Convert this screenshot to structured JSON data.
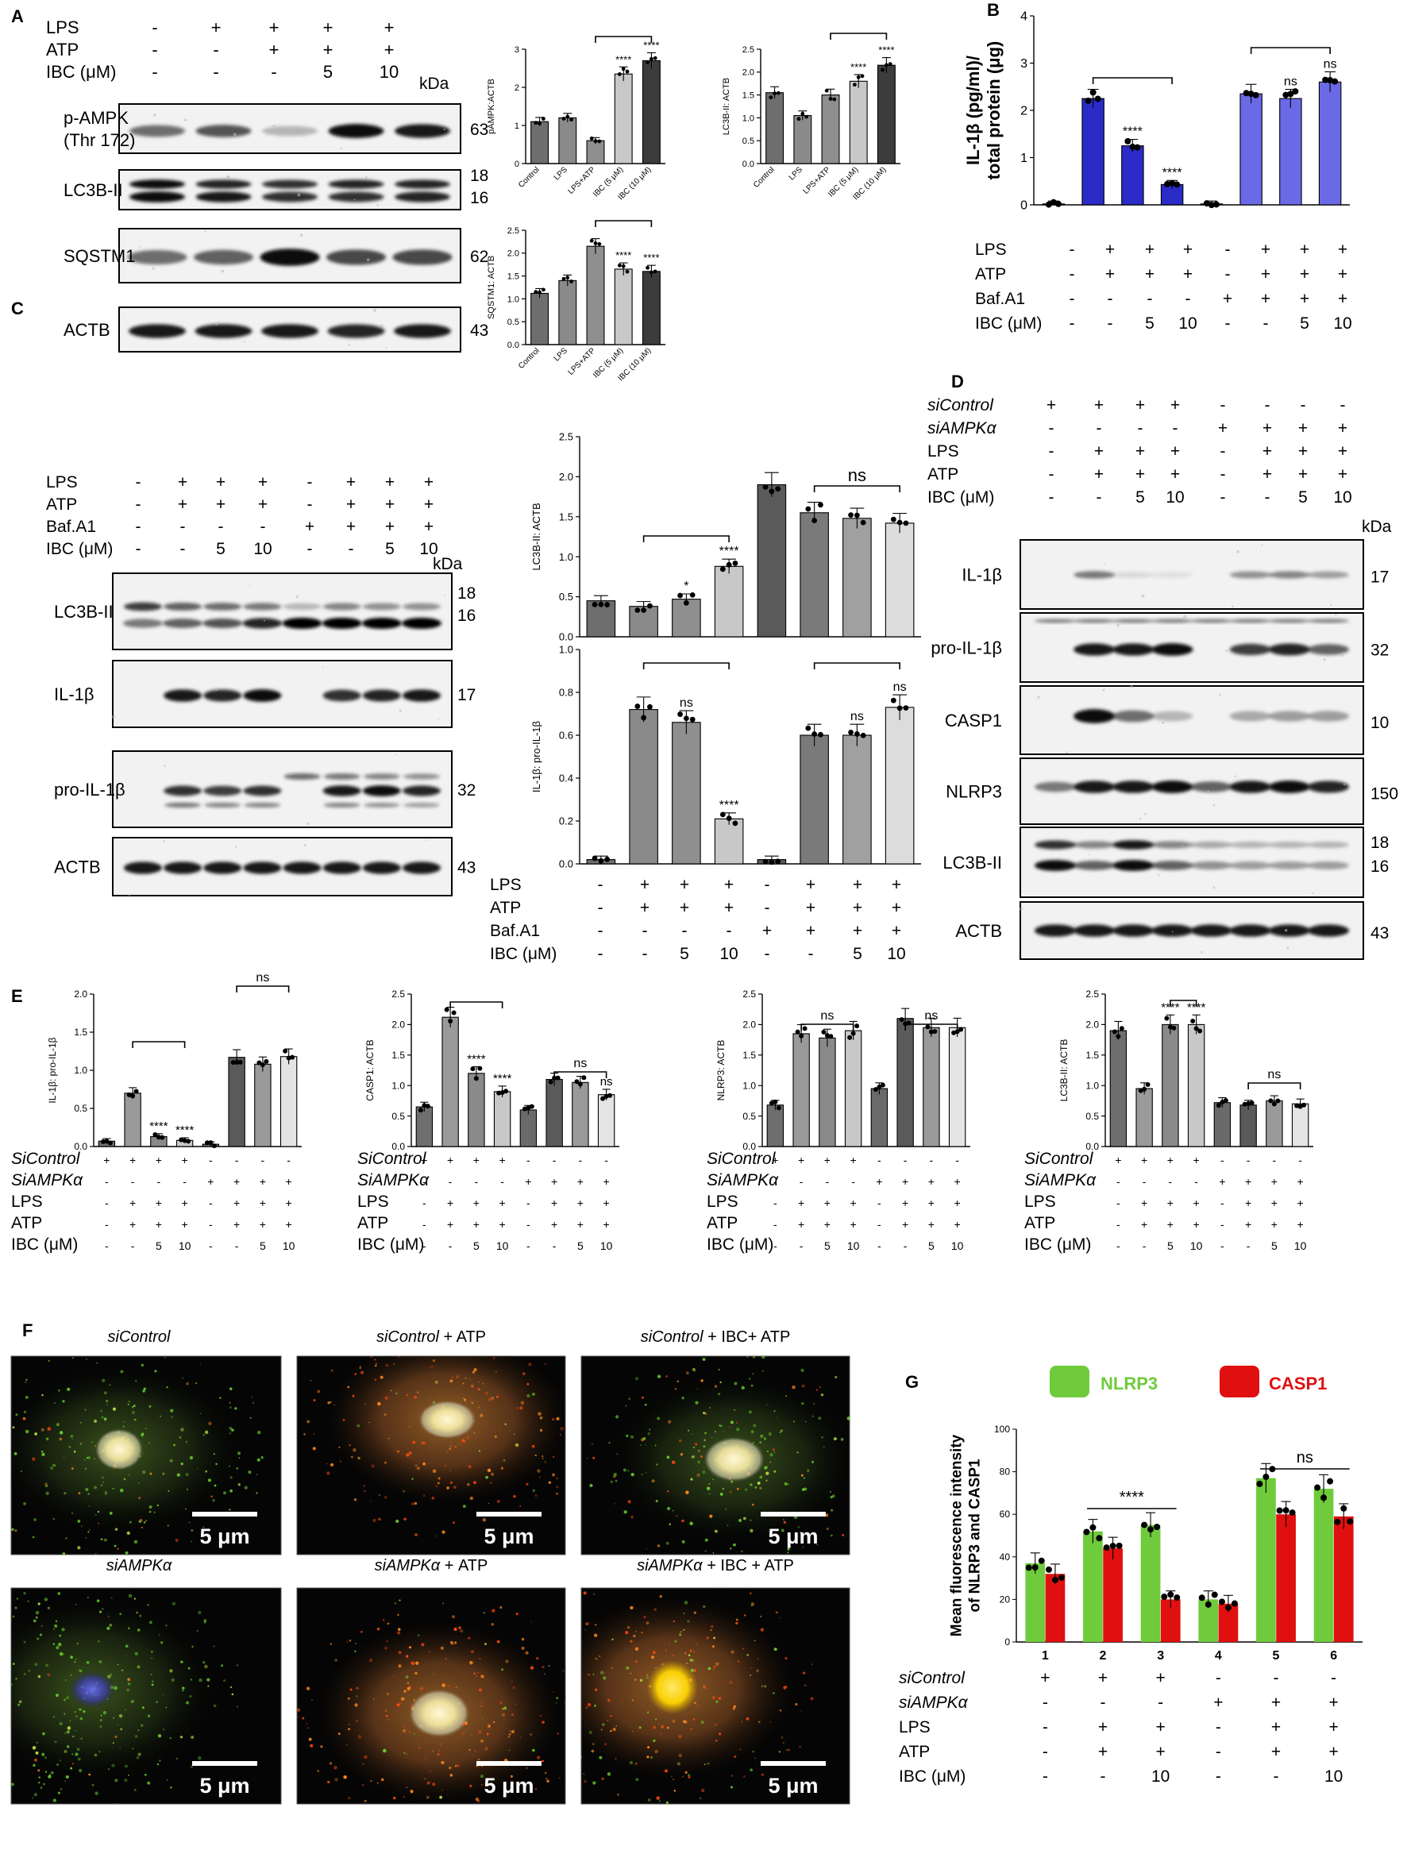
{
  "figure": {
    "panel_letters": [
      "A",
      "B",
      "C",
      "D",
      "E",
      "F",
      "G"
    ],
    "kda": "kDa",
    "ns": "ns",
    "sig4": "****",
    "sig1": "*"
  },
  "panelA": {
    "treat_rows": [
      {
        "label": "LPS",
        "signs": [
          "-",
          "+",
          "+",
          "+",
          "+"
        ]
      },
      {
        "label": "ATP",
        "signs": [
          "-",
          "-",
          "+",
          "+",
          "+"
        ]
      },
      {
        "label": "IBC (μM)",
        "signs": [
          "-",
          "-",
          "-",
          "5",
          "10"
        ]
      }
    ],
    "blots": [
      {
        "label": [
          "p-AMPK",
          "(Thr 172)"
        ],
        "kda": [
          "63"
        ]
      },
      {
        "label": [
          "LC3B-II"
        ],
        "kda": [
          "18",
          "16"
        ]
      },
      {
        "label": [
          "SQSTM1"
        ],
        "kda": [
          "62"
        ]
      },
      {
        "label": [
          "ACTB"
        ],
        "kda": [
          "43"
        ]
      }
    ],
    "categories": [
      "Control",
      "LPS",
      "LPS+ATP",
      "IBC (5 μM)",
      "IBC (10 μM)"
    ]
  },
  "panelB": {
    "treat_rows": [
      {
        "label": "LPS",
        "signs": [
          "-",
          "+",
          "+",
          "+",
          "-",
          "+",
          "+",
          "+"
        ]
      },
      {
        "label": "ATP",
        "signs": [
          "-",
          "+",
          "+",
          "+",
          "-",
          "+",
          "+",
          "+"
        ]
      },
      {
        "label": "Baf.A1",
        "signs": [
          "-",
          "-",
          "-",
          "-",
          "+",
          "+",
          "+",
          "+"
        ]
      },
      {
        "label": "IBC (μM)",
        "signs": [
          "-",
          "-",
          "5",
          "10",
          "-",
          "-",
          "5",
          "10"
        ]
      }
    ]
  },
  "panelC": {
    "treat_rows": [
      {
        "label": "LPS",
        "signs": [
          "-",
          "+",
          "+",
          "+",
          "-",
          "+",
          "+",
          "+"
        ]
      },
      {
        "label": "ATP",
        "signs": [
          "-",
          "+",
          "+",
          "+",
          "-",
          "+",
          "+",
          "+"
        ]
      },
      {
        "label": "Baf.A1",
        "signs": [
          "-",
          "-",
          "-",
          "-",
          "+",
          "+",
          "+",
          "+"
        ]
      },
      {
        "label": "IBC (μM)",
        "signs": [
          "-",
          "-",
          "5",
          "10",
          "-",
          "-",
          "5",
          "10"
        ]
      }
    ],
    "blots": [
      {
        "label": [
          "LC3B-II"
        ],
        "kda": [
          "18",
          "16"
        ]
      },
      {
        "label": [
          "IL-1β"
        ],
        "kda": [
          "17"
        ]
      },
      {
        "label": [
          "pro-IL-1β"
        ],
        "kda": [
          "32"
        ]
      },
      {
        "label": [
          "ACTB"
        ],
        "kda": [
          "43"
        ]
      }
    ]
  },
  "panelD": {
    "treat_rows": [
      {
        "label": "siControl",
        "italic": true,
        "signs": [
          "+",
          "+",
          "+",
          "+",
          "-",
          "-",
          "-",
          "-"
        ]
      },
      {
        "label": "siAMPKα",
        "italic": true,
        "signs": [
          "-",
          "-",
          "-",
          "-",
          "+",
          "+",
          "+",
          "+"
        ]
      },
      {
        "label": "LPS",
        "signs": [
          "-",
          "+",
          "+",
          "+",
          "-",
          "+",
          "+",
          "+"
        ]
      },
      {
        "label": "ATP",
        "signs": [
          "-",
          "+",
          "+",
          "+",
          "-",
          "+",
          "+",
          "+"
        ]
      },
      {
        "label": "IBC (μM)",
        "signs": [
          "-",
          "-",
          "5",
          "10",
          "-",
          "-",
          "5",
          "10"
        ]
      }
    ],
    "blots": [
      {
        "label": [
          "IL-1β"
        ],
        "kda": [
          "17"
        ]
      },
      {
        "label": [
          "pro-IL-1β"
        ],
        "kda": [
          "32"
        ]
      },
      {
        "label": [
          "CASP1"
        ],
        "kda": [
          "10"
        ]
      },
      {
        "label": [
          "NLRP3"
        ],
        "kda": [
          "150"
        ]
      },
      {
        "label": [
          "LC3B-II"
        ],
        "kda": [
          "18",
          "16"
        ]
      },
      {
        "label": [
          "ACTB"
        ],
        "kda": [
          "43"
        ]
      }
    ]
  },
  "panelE": {
    "treat_rows": [
      {
        "label": "SiControl",
        "italic": true,
        "signs": [
          "+",
          "+",
          "+",
          "+",
          "-",
          "-",
          "-",
          "-"
        ]
      },
      {
        "label": "SiAMPKα",
        "italic": true,
        "signs": [
          "-",
          "-",
          "-",
          "-",
          "+",
          "+",
          "+",
          "+"
        ]
      },
      {
        "label": "LPS",
        "signs": [
          "-",
          "+",
          "+",
          "+",
          "-",
          "+",
          "+",
          "+"
        ]
      },
      {
        "label": "ATP",
        "signs": [
          "-",
          "+",
          "+",
          "+",
          "-",
          "+",
          "+",
          "+"
        ]
      },
      {
        "label": "IBC (μM)",
        "signs": [
          "-",
          "-",
          "5",
          "10",
          "-",
          "-",
          "5",
          "10"
        ]
      }
    ]
  },
  "panelF": {
    "titles": [
      [
        {
          "t": "siControl",
          "i": true
        }
      ],
      [
        {
          "t": "siControl",
          "i": true
        },
        {
          "t": " + ATP",
          "i": false
        }
      ],
      [
        {
          "t": "siControl",
          "i": true
        },
        {
          "t": " + IBC+ ATP",
          "i": false
        }
      ],
      [
        {
          "t": "siAMPKα",
          "i": true
        }
      ],
      [
        {
          "t": "siAMPKα",
          "i": true
        },
        {
          "t": " + ATP",
          "i": false
        }
      ],
      [
        {
          "t": "siAMPKα",
          "i": true
        },
        {
          "t": " + IBC + ATP",
          "i": false
        }
      ]
    ],
    "scale": "5 μm"
  },
  "panelG": {
    "legend": [
      "NLRP3",
      "CASP1"
    ],
    "treat_rows": [
      {
        "label": "siControl",
        "italic": true,
        "signs": [
          "+",
          "+",
          "+",
          "-",
          "-",
          "-"
        ]
      },
      {
        "label": "siAMPKα",
        "italic": true,
        "signs": [
          "-",
          "-",
          "-",
          "+",
          "+",
          "+"
        ]
      },
      {
        "label": "LPS",
        "signs": [
          "-",
          "+",
          "+",
          "-",
          "+",
          "+"
        ]
      },
      {
        "label": "ATP",
        "signs": [
          "-",
          "+",
          "+",
          "-",
          "+",
          "+"
        ]
      },
      {
        "label": "IBC (μM)",
        "signs": [
          "-",
          "-",
          "10",
          "-",
          "-",
          "10"
        ]
      }
    ]
  },
  "chart_data": [
    {
      "id": "A1",
      "type": "bar",
      "ylabel": "pAMPK:ACTB",
      "categories": [
        "Control",
        "LPS",
        "LPS+ATP",
        "IBC (5 μM)",
        "IBC (10 μM)"
      ],
      "values": [
        1.1,
        1.2,
        0.6,
        2.35,
        2.7
      ],
      "ylim": [
        0,
        3
      ],
      "yticks": [
        0,
        1,
        2,
        3
      ],
      "sig": [
        "",
        "",
        "",
        "****",
        "****"
      ]
    },
    {
      "id": "A2",
      "type": "bar",
      "ylabel": "LC3B-II: ACTB",
      "categories": [
        "Control",
        "LPS",
        "LPS+ATP",
        "IBC (5 μM)",
        "IBC (10 μM)"
      ],
      "values": [
        1.55,
        1.05,
        1.5,
        1.8,
        2.15
      ],
      "ylim": [
        0,
        2.5
      ],
      "yticks": [
        0,
        0.5,
        1,
        1.5,
        2,
        2.5
      ],
      "yticklabels": [
        "0.0",
        "0.5",
        "1.0",
        "1.5",
        "2.0",
        "2.5"
      ],
      "sig": [
        "",
        "",
        "",
        "****",
        "****"
      ]
    },
    {
      "id": "A3",
      "type": "bar",
      "ylabel": "SQSTM1: ACTB",
      "categories": [
        "Control",
        "LPS",
        "LPS+ATP",
        "IBC (5 μM)",
        "IBC (10 μM)"
      ],
      "values": [
        1.12,
        1.4,
        2.15,
        1.65,
        1.6
      ],
      "ylim": [
        0,
        2.5
      ],
      "yticks": [
        0,
        0.5,
        1,
        1.5,
        2,
        2.5
      ],
      "yticklabels": [
        "0.0",
        "0.5",
        "1.0",
        "1.5",
        "2.0",
        "2.5"
      ],
      "sig": [
        "",
        "",
        "",
        "****",
        "****"
      ]
    },
    {
      "id": "B",
      "type": "bar",
      "ylabel": "IL-1β (pg/ml)/ total protein (μg)",
      "values": [
        0.02,
        2.25,
        1.25,
        0.43,
        0.02,
        2.35,
        2.25,
        2.6
      ],
      "ylim": [
        0,
        4
      ],
      "yticks": [
        0,
        1,
        2,
        3,
        4
      ],
      "sig": [
        "",
        "",
        "****",
        "****",
        "",
        "",
        "ns",
        "ns"
      ]
    },
    {
      "id": "C1",
      "type": "bar",
      "ylabel": "LC3B-II: ACTB",
      "values": [
        0.45,
        0.38,
        0.47,
        0.88,
        1.9,
        1.55,
        1.48,
        1.42
      ],
      "ylim": [
        0,
        2.5
      ],
      "yticks": [
        0,
        0.5,
        1,
        1.5,
        2,
        2.5
      ],
      "yticklabels": [
        "0.0",
        "0.5",
        "1.0",
        "1.5",
        "2.0",
        "2.5"
      ],
      "sig": [
        "",
        "",
        "*",
        "****",
        "",
        "",
        "",
        ""
      ]
    },
    {
      "id": "C2",
      "type": "bar",
      "ylabel": "IL-1β: pro-IL-1β",
      "values": [
        0.02,
        0.72,
        0.66,
        0.21,
        0.02,
        0.6,
        0.6,
        0.73
      ],
      "ylim": [
        0,
        1
      ],
      "yticks": [
        0,
        0.2,
        0.4,
        0.6,
        0.8,
        1.0
      ],
      "yticklabels": [
        "0.0",
        "0.2",
        "0.4",
        "0.6",
        "0.8",
        "1.0"
      ],
      "sig": [
        "",
        "",
        "ns",
        "****",
        "",
        "",
        "ns",
        "ns"
      ]
    },
    {
      "id": "E1",
      "type": "bar",
      "ylabel": "IL-1β: pro-IL-1β",
      "values": [
        0.07,
        0.7,
        0.13,
        0.08,
        0.03,
        1.17,
        1.08,
        1.18
      ],
      "ylim": [
        0,
        2
      ],
      "yticks": [
        0,
        0.5,
        1,
        1.5,
        2
      ],
      "yticklabels": [
        "0.0",
        "0.5",
        "1.0",
        "1.5",
        "2.0"
      ],
      "sig": [
        "",
        "",
        "****",
        "****",
        "",
        "",
        "",
        ""
      ]
    },
    {
      "id": "E2",
      "type": "bar",
      "ylabel": "CASP1: ACTB",
      "values": [
        0.65,
        2.12,
        1.2,
        0.9,
        0.6,
        1.1,
        1.05,
        0.85
      ],
      "ylim": [
        0,
        2.5
      ],
      "yticks": [
        0,
        0.5,
        1,
        1.5,
        2,
        2.5
      ],
      "yticklabels": [
        "0.0",
        "0.5",
        "1.0",
        "1.5",
        "2.0",
        "2.5"
      ],
      "sig": [
        "",
        "",
        "****",
        "****",
        "",
        "",
        "",
        "ns"
      ]
    },
    {
      "id": "E3",
      "type": "bar",
      "ylabel": "NLRP3: ACTB",
      "values": [
        0.68,
        1.85,
        1.78,
        1.9,
        0.95,
        2.1,
        1.95,
        1.95
      ],
      "ylim": [
        0,
        2.5
      ],
      "yticks": [
        0,
        0.5,
        1,
        1.5,
        2,
        2.5
      ],
      "yticklabels": [
        "0.0",
        "0.5",
        "1.0",
        "1.5",
        "2.0",
        "2.5"
      ],
      "sig": [
        "",
        "",
        "",
        "",
        "",
        "",
        "",
        ""
      ]
    },
    {
      "id": "E4",
      "type": "bar",
      "ylabel": "LC3B-II: ACTB",
      "values": [
        1.9,
        0.95,
        2.0,
        2.0,
        0.72,
        0.68,
        0.75,
        0.7
      ],
      "ylim": [
        0,
        2.5
      ],
      "yticks": [
        0,
        0.5,
        1,
        1.5,
        2,
        2.5
      ],
      "yticklabels": [
        "0.0",
        "0.5",
        "1.0",
        "1.5",
        "2.0",
        "2.5"
      ],
      "sig": [
        "",
        "",
        "****",
        "****",
        "",
        "",
        "",
        ""
      ]
    },
    {
      "id": "G",
      "type": "bar",
      "ylabel": "Mean fluorescence intensity of NLRP3 and CASP1",
      "categories": [
        "1",
        "2",
        "3",
        "4",
        "5",
        "6"
      ],
      "series": [
        {
          "name": "NLRP3",
          "values": [
            37,
            52,
            55,
            20,
            77,
            72
          ]
        },
        {
          "name": "CASP1",
          "values": [
            32,
            44,
            20,
            18,
            60,
            59
          ]
        }
      ],
      "ylim": [
        0,
        100
      ],
      "yticks": [
        0,
        20,
        40,
        60,
        80,
        100
      ]
    }
  ]
}
